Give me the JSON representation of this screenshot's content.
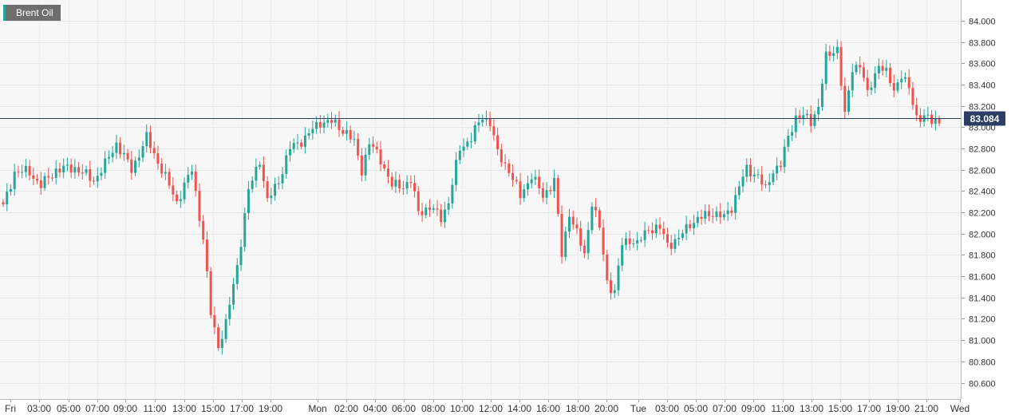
{
  "legend": {
    "label": "Brent Oil"
  },
  "colors": {
    "up": "#26a69a",
    "down": "#ef5350",
    "last_line": "#2c3e66",
    "grid": "#e6e6e6",
    "text": "#333333"
  },
  "chart_data": {
    "type": "candlestick",
    "title": "Brent Oil",
    "xlabel": "",
    "ylabel": "",
    "ylim": [
      80.45,
      84.1
    ],
    "y_ticks": [
      "84.000",
      "83.800",
      "83.600",
      "83.400",
      "83.200",
      "83.000",
      "82.800",
      "82.600",
      "82.400",
      "82.200",
      "82.000",
      "81.800",
      "81.600",
      "81.400",
      "81.200",
      "81.000",
      "80.800",
      "80.600"
    ],
    "y_tick_values": [
      84.0,
      83.8,
      83.6,
      83.4,
      83.2,
      83.0,
      82.8,
      82.6,
      82.4,
      82.2,
      82.0,
      81.8,
      81.6,
      81.4,
      81.2,
      81.0,
      80.8,
      80.6
    ],
    "x_ticks": [
      "Fri",
      "03:00",
      "05:00",
      "07:00",
      "09:00",
      "11:00",
      "13:00",
      "15:00",
      "17:00",
      "19:00",
      "Mon",
      "02:00",
      "04:00",
      "06:00",
      "08:00",
      "10:00",
      "12:00",
      "14:00",
      "16:00",
      "18:00",
      "20:00",
      "Tue",
      "03:00",
      "05:00",
      "07:00",
      "09:00",
      "11:00",
      "13:00",
      "15:00",
      "17:00",
      "19:00",
      "21:00",
      "Wed"
    ],
    "last_price": 83.084,
    "last_price_label": "83.084",
    "grid": true,
    "close_points": [
      [
        0,
        82.25
      ],
      [
        3,
        82.58
      ],
      [
        7,
        82.58
      ],
      [
        10,
        82.45
      ],
      [
        14,
        82.6
      ],
      [
        19,
        82.62
      ],
      [
        24,
        82.5
      ],
      [
        27,
        82.65
      ],
      [
        30,
        82.85
      ],
      [
        34,
        82.6
      ],
      [
        38,
        82.9
      ],
      [
        42,
        82.6
      ],
      [
        46,
        82.3
      ],
      [
        50,
        82.6
      ],
      [
        53,
        81.95
      ],
      [
        55,
        81.25
      ],
      [
        57,
        80.95
      ],
      [
        59,
        81.15
      ],
      [
        62,
        81.7
      ],
      [
        65,
        82.4
      ],
      [
        68,
        82.7
      ],
      [
        70,
        82.3
      ],
      [
        73,
        82.5
      ],
      [
        76,
        82.8
      ],
      [
        80,
        82.9
      ],
      [
        84,
        83.05
      ],
      [
        87,
        83.05
      ],
      [
        91,
        82.95
      ],
      [
        93,
        82.85
      ],
      [
        95,
        82.6
      ],
      [
        97,
        82.85
      ],
      [
        100,
        82.7
      ],
      [
        103,
        82.45
      ],
      [
        106,
        82.45
      ],
      [
        108,
        82.5
      ],
      [
        110,
        82.2
      ],
      [
        113,
        82.25
      ],
      [
        116,
        82.15
      ],
      [
        118,
        82.3
      ],
      [
        121,
        82.8
      ],
      [
        124,
        82.9
      ],
      [
        127,
        83.1
      ],
      [
        129,
        83.05
      ],
      [
        131,
        82.75
      ],
      [
        134,
        82.6
      ],
      [
        137,
        82.35
      ],
      [
        140,
        82.55
      ],
      [
        143,
        82.35
      ],
      [
        146,
        82.5
      ],
      [
        148,
        81.8
      ],
      [
        150,
        82.2
      ],
      [
        152,
        82.0
      ],
      [
        154,
        81.8
      ],
      [
        156,
        82.3
      ],
      [
        158,
        82.05
      ],
      [
        160,
        81.55
      ],
      [
        162,
        81.45
      ],
      [
        164,
        81.9
      ],
      [
        166,
        81.95
      ],
      [
        168,
        81.9
      ],
      [
        171,
        82.05
      ],
      [
        174,
        82.05
      ],
      [
        176,
        81.9
      ],
      [
        179,
        81.95
      ],
      [
        182,
        82.1
      ],
      [
        185,
        82.15
      ],
      [
        188,
        82.2
      ],
      [
        191,
        82.15
      ],
      [
        193,
        82.25
      ],
      [
        195,
        82.45
      ],
      [
        197,
        82.6
      ],
      [
        200,
        82.55
      ],
      [
        202,
        82.4
      ],
      [
        204,
        82.6
      ],
      [
        206,
        82.65
      ],
      [
        208,
        82.9
      ],
      [
        210,
        83.1
      ],
      [
        212,
        83.1
      ],
      [
        214,
        83.05
      ],
      [
        216,
        83.2
      ],
      [
        218,
        83.65
      ],
      [
        221,
        83.75
      ],
      [
        223,
        83.1
      ],
      [
        225,
        83.55
      ],
      [
        227,
        83.6
      ],
      [
        229,
        83.3
      ],
      [
        232,
        83.6
      ],
      [
        234,
        83.5
      ],
      [
        236,
        83.35
      ],
      [
        238,
        83.5
      ],
      [
        240,
        83.35
      ],
      [
        242,
        83.1
      ],
      [
        244,
        83.1
      ],
      [
        246,
        83.05
      ],
      [
        248,
        83.07
      ]
    ]
  }
}
